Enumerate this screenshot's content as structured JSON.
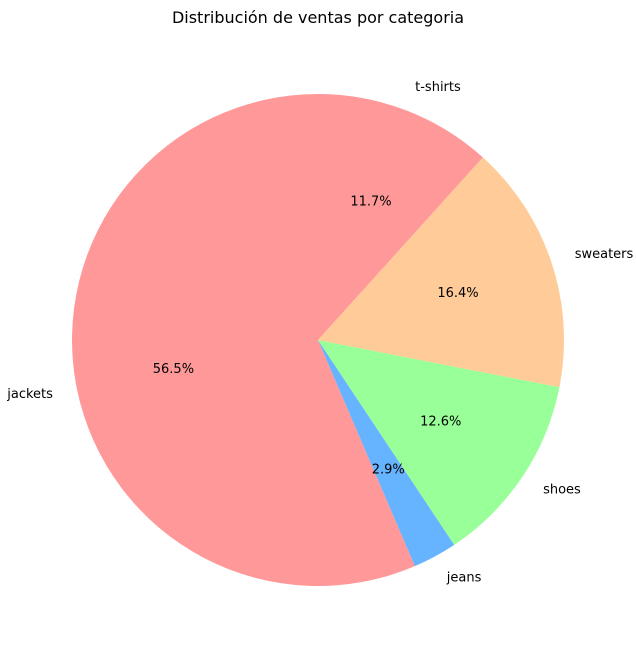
{
  "chart_data": {
    "type": "pie",
    "title": "Distribución de ventas por categoria",
    "categories": [
      "jackets",
      "jeans",
      "shoes",
      "sweaters",
      "t-shirts"
    ],
    "values": [
      56.5,
      2.9,
      12.6,
      16.4,
      11.7
    ],
    "value_labels": [
      "56.5%",
      "2.9%",
      "12.6%",
      "16.4%",
      "11.7%"
    ],
    "colors": [
      "#ff9999",
      "#66b3ff",
      "#99ff99",
      "#ffcc99",
      "#ff9999"
    ],
    "start_angle_deg": 90,
    "direction": "counterclockwise",
    "legend": "none",
    "grid": false
  }
}
